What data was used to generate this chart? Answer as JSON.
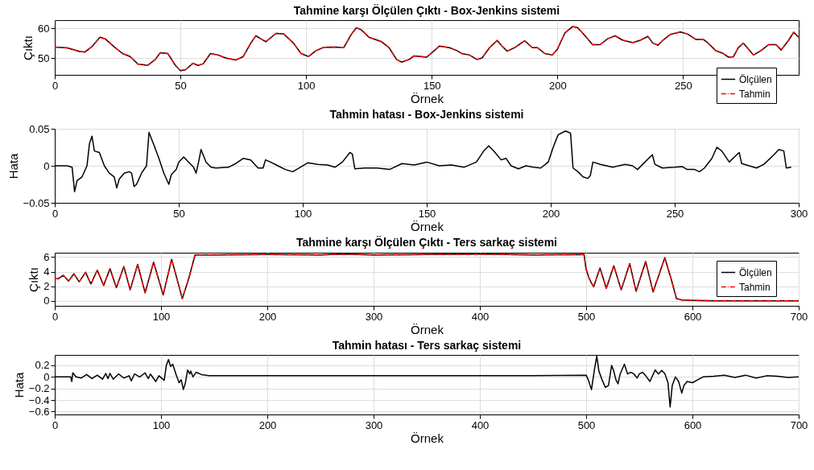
{
  "chart_data": [
    {
      "type": "line",
      "title": "Tahmine karşı Ölçülen Çıktı - Box-Jenkins sistemi",
      "xlabel": "Örnek",
      "ylabel": "Çıktı",
      "xlim": [
        0,
        296
      ],
      "xticks": [
        0,
        50,
        100,
        150,
        200,
        250
      ],
      "ylim": [
        44.3,
        62.8
      ],
      "yticks": [
        50,
        60
      ],
      "grid": true,
      "legend": "bottom right",
      "series": [
        {
          "name": "Ölçülen",
          "color": "#000000",
          "line_style": "solid",
          "x": [
            0,
            5,
            10,
            12,
            15,
            18,
            20,
            24,
            27,
            30,
            33,
            37,
            40,
            42,
            45,
            48,
            50,
            52,
            55,
            57,
            59,
            62,
            65,
            68,
            72,
            75,
            78,
            80,
            84,
            88,
            91,
            95,
            98,
            101,
            104,
            107,
            112,
            115,
            118,
            120,
            122,
            125,
            130,
            133,
            136,
            138,
            141,
            143,
            148,
            151,
            153,
            157,
            160,
            162,
            165,
            168,
            170,
            173,
            176,
            178,
            180,
            183,
            187,
            190,
            192,
            195,
            198,
            200,
            203,
            206,
            208,
            211,
            214,
            217,
            220,
            223,
            226,
            230,
            233,
            236,
            238,
            240,
            242,
            245,
            249,
            252,
            255,
            258,
            260,
            263,
            266,
            268,
            270,
            272,
            274,
            276,
            278,
            281,
            284,
            287,
            289,
            292,
            294,
            296
          ],
          "values": [
            53.7,
            53.4,
            52.2,
            52.0,
            54,
            57,
            56.5,
            53.5,
            51.5,
            50.5,
            48,
            47.5,
            49.5,
            51.8,
            51.5,
            47.5,
            45.7,
            46,
            48.2,
            47.5,
            48,
            51.5,
            51,
            50,
            49.3,
            50.5,
            55,
            57.5,
            55.5,
            58.3,
            58.2,
            55,
            51.5,
            50.5,
            52.5,
            53.6,
            53.7,
            53.5,
            58,
            60.2,
            59.5,
            57,
            55.5,
            53.5,
            49.5,
            48.6,
            49.5,
            50.7,
            50.3,
            52.5,
            54,
            53.5,
            52.5,
            51.5,
            51,
            49.5,
            50,
            53.5,
            55.9,
            54,
            52.3,
            53.5,
            55.8,
            53.5,
            53.5,
            51.5,
            51,
            53,
            58.5,
            60.6,
            60.3,
            57.5,
            54.5,
            54.5,
            56.5,
            57.5,
            56,
            55.2,
            56,
            57.3,
            55,
            54.3,
            56,
            58,
            58.8,
            58,
            56.3,
            56.3,
            55,
            52.5,
            51.5,
            50.3,
            50.4,
            53.5,
            55,
            53,
            51,
            52.5,
            54.5,
            54.5,
            52.7,
            56,
            58.7,
            57
          ]
        },
        {
          "name": "Tahmin",
          "color": "#ff0000",
          "line_style": "dashed",
          "x": [
            0,
            5,
            10,
            12,
            15,
            18,
            20,
            24,
            27,
            30,
            33,
            37,
            40,
            42,
            45,
            48,
            50,
            52,
            55,
            57,
            59,
            62,
            65,
            68,
            72,
            75,
            78,
            80,
            84,
            88,
            91,
            95,
            98,
            101,
            104,
            107,
            112,
            115,
            118,
            120,
            122,
            125,
            130,
            133,
            136,
            138,
            141,
            143,
            148,
            151,
            153,
            157,
            160,
            162,
            165,
            168,
            170,
            173,
            176,
            178,
            180,
            183,
            187,
            190,
            192,
            195,
            198,
            200,
            203,
            206,
            208,
            211,
            214,
            217,
            220,
            223,
            226,
            230,
            233,
            236,
            238,
            240,
            242,
            245,
            249,
            252,
            255,
            258,
            260,
            263,
            266,
            268,
            270,
            272,
            274,
            276,
            278,
            281,
            284,
            287,
            289,
            292,
            294,
            296
          ],
          "values": [
            53.7,
            53.4,
            52.2,
            52.0,
            54,
            57,
            56.5,
            53.5,
            51.5,
            50.5,
            48,
            47.5,
            49.5,
            51.8,
            51.5,
            47.5,
            45.7,
            46,
            48.2,
            47.5,
            48,
            51.5,
            51,
            50,
            49.3,
            50.5,
            55,
            57.5,
            55.5,
            58.3,
            58.2,
            55,
            51.5,
            50.5,
            52.5,
            53.6,
            53.7,
            53.5,
            58,
            60.2,
            59.5,
            57,
            55.5,
            53.5,
            49.5,
            48.6,
            49.5,
            50.7,
            50.3,
            52.5,
            54,
            53.5,
            52.5,
            51.5,
            51,
            49.5,
            50,
            53.5,
            55.9,
            54,
            52.3,
            53.5,
            55.8,
            53.5,
            53.5,
            51.5,
            51,
            53,
            58.5,
            60.6,
            60.3,
            57.5,
            54.5,
            54.5,
            56.5,
            57.5,
            56,
            55.2,
            56,
            57.3,
            55,
            54.3,
            56,
            58,
            58.8,
            58,
            56.3,
            56.3,
            55,
            52.5,
            51.5,
            50.3,
            50.4,
            53.5,
            55,
            53,
            51,
            52.5,
            54.5,
            54.5,
            52.7,
            56,
            58.7,
            57
          ]
        }
      ]
    },
    {
      "type": "line",
      "title": "Tahmin hatası - Box-Jenkins sistemi",
      "xlabel": "Örnek",
      "ylabel": "Hata",
      "xlim": [
        0,
        300
      ],
      "xticks": [
        0,
        50,
        100,
        150,
        200,
        250,
        300
      ],
      "ylim": [
        -0.05,
        0.05
      ],
      "yticks": [
        -0.05,
        {
          "value": 0,
          "label": "0"
        },
        0.05
      ],
      "grid": true,
      "series": [
        {
          "color": "#000000",
          "line_style": "solid",
          "x": [
            0,
            5,
            7,
            8,
            9,
            11,
            13,
            14,
            15,
            16,
            18,
            20,
            22,
            24,
            25,
            26,
            28,
            30,
            31,
            32,
            33,
            35,
            37,
            38,
            40,
            42,
            44,
            46,
            47,
            49,
            50,
            52,
            54,
            56,
            57,
            58,
            59,
            61,
            63,
            65,
            70,
            73,
            76,
            79,
            82,
            84,
            85,
            87,
            90,
            93,
            96,
            99,
            102,
            106,
            110,
            113,
            116,
            119,
            120,
            121,
            125,
            130,
            135,
            140,
            145,
            150,
            155,
            160,
            165,
            170,
            173,
            175,
            177,
            180,
            182,
            184,
            187,
            190,
            193,
            196,
            199,
            201,
            203,
            206,
            208,
            209,
            211,
            213,
            215,
            216,
            217,
            220,
            225,
            230,
            233,
            235,
            238,
            241,
            242,
            245,
            250,
            253,
            255,
            258,
            260,
            262,
            265,
            267,
            269,
            272,
            275,
            276,
            277,
            280,
            283,
            286,
            290,
            292,
            294,
            295,
            297
          ],
          "values": [
            0,
            0,
            -0.002,
            -0.035,
            -0.02,
            -0.015,
            0,
            0.03,
            0.04,
            0.02,
            0.018,
            0,
            -0.01,
            -0.015,
            -0.03,
            -0.018,
            -0.01,
            -0.008,
            -0.01,
            -0.028,
            -0.025,
            -0.01,
            0,
            0.045,
            0.028,
            0.01,
            -0.01,
            -0.025,
            -0.012,
            -0.005,
            0.005,
            0.012,
            0.005,
            -0.002,
            -0.01,
            0.005,
            0.022,
            0.005,
            -0.002,
            -0.003,
            -0.002,
            0.003,
            0.01,
            0.008,
            -0.003,
            -0.003,
            0.008,
            0.005,
            0,
            -0.005,
            -0.008,
            -0.002,
            0.004,
            0.002,
            0.001,
            -0.002,
            0.005,
            0.018,
            0.016,
            -0.004,
            -0.003,
            -0.003,
            -0.005,
            0.003,
            0.001,
            0.005,
            0,
            0.001,
            -0.002,
            0.005,
            0.02,
            0.027,
            0.02,
            0.008,
            0.01,
            0,
            -0.004,
            0,
            -0.002,
            -0.003,
            0.005,
            0.025,
            0.042,
            0.047,
            0.044,
            -0.003,
            -0.008,
            -0.015,
            -0.017,
            -0.013,
            0.005,
            0.002,
            -0.002,
            0.002,
            0,
            -0.005,
            0.005,
            0.015,
            0.002,
            -0.003,
            -0.002,
            -0.001,
            -0.005,
            -0.005,
            -0.008,
            -0.003,
            0.01,
            0.025,
            0.02,
            0.005,
            0.015,
            0.018,
            0.003,
            0,
            -0.003,
            0.002,
            0.015,
            0.022,
            0.02,
            -0.003,
            -0.002
          ]
        }
      ]
    },
    {
      "type": "line",
      "title": "Tahmine karşı Ölçülen Çıktı - Ters sarkaç sistemi",
      "xlabel": "Örnek",
      "ylabel": "Çıktı",
      "xlim": [
        0,
        700
      ],
      "xticks": [
        0,
        100,
        200,
        300,
        400,
        500,
        600,
        700
      ],
      "ylim": [
        -0.7,
        6.6
      ],
      "yticks": [
        0,
        2,
        4,
        6
      ],
      "grid": true,
      "legend": "top right",
      "series": [
        {
          "name": "Ölçülen",
          "color": "#000000",
          "line_style": "solid",
          "x": [
            0,
            3,
            8,
            13,
            18,
            23,
            29,
            34,
            40,
            46,
            52,
            58,
            65,
            71,
            78,
            85,
            93,
            102,
            110,
            120,
            126,
            132,
            150,
            200,
            250,
            270,
            300,
            350,
            400,
            450,
            498,
            500,
            503,
            507,
            513,
            519,
            526,
            533,
            541,
            547,
            556,
            563,
            574,
            580,
            585,
            590,
            600,
            620,
            650,
            700
          ],
          "values": [
            3.1,
            3.0,
            3.5,
            2.7,
            3.7,
            2.6,
            3.9,
            2.3,
            4.2,
            2.1,
            4.4,
            1.8,
            4.7,
            1.5,
            5.0,
            1.1,
            5.3,
            0.8,
            5.7,
            0.3,
            3.0,
            6.3,
            6.3,
            6.35,
            6.3,
            6.4,
            6.3,
            6.35,
            6.4,
            6.3,
            6.35,
            4.3,
            3.0,
            1.9,
            4.5,
            1.7,
            4.8,
            1.5,
            5.1,
            1.3,
            5.4,
            1.2,
            5.9,
            3.0,
            0.3,
            0.1,
            0.05,
            0,
            0,
            0
          ]
        },
        {
          "name": "Tahmin",
          "color": "#ff0000",
          "line_style": "dashed",
          "x": [
            0,
            3,
            8,
            13,
            18,
            23,
            29,
            34,
            40,
            46,
            52,
            58,
            65,
            71,
            78,
            85,
            93,
            102,
            110,
            120,
            126,
            132,
            150,
            200,
            250,
            270,
            300,
            350,
            400,
            450,
            498,
            500,
            503,
            507,
            513,
            519,
            526,
            533,
            541,
            547,
            556,
            563,
            574,
            580,
            585,
            590,
            600,
            620,
            650,
            700
          ],
          "values": [
            3.1,
            3.0,
            3.5,
            2.7,
            3.7,
            2.6,
            3.9,
            2.3,
            4.2,
            2.1,
            4.4,
            1.8,
            4.7,
            1.5,
            5.0,
            1.1,
            5.3,
            0.8,
            5.7,
            0.3,
            3.0,
            6.3,
            6.3,
            6.35,
            6.3,
            6.4,
            6.3,
            6.35,
            6.4,
            6.3,
            6.35,
            4.3,
            3.0,
            1.9,
            4.5,
            1.7,
            4.8,
            1.5,
            5.1,
            1.3,
            5.4,
            1.2,
            5.9,
            3.0,
            0.3,
            0.1,
            0.05,
            0,
            0,
            0
          ]
        }
      ]
    },
    {
      "type": "line",
      "title": "Tahmin hatası - Ters sarkaç sistemi",
      "xlabel": "Örnek",
      "ylabel": "Hata",
      "xlim": [
        0,
        700
      ],
      "xticks": [
        0,
        100,
        200,
        300,
        400,
        500,
        600,
        700
      ],
      "ylim": [
        -0.65,
        0.38
      ],
      "yticks": [
        -0.6,
        -0.4,
        -0.2,
        0,
        0.2
      ],
      "grid": true,
      "series": [
        {
          "color": "#000000",
          "line_style": "solid",
          "x": [
            0,
            15,
            16,
            17,
            20,
            25,
            30,
            35,
            40,
            45,
            48,
            50,
            52,
            55,
            60,
            65,
            70,
            72,
            75,
            80,
            85,
            88,
            90,
            95,
            98,
            103,
            105,
            107,
            109,
            111,
            114,
            117,
            119,
            121,
            123,
            125,
            127,
            128,
            130,
            133,
            138,
            145,
            175,
            200,
            250,
            300,
            350,
            400,
            450,
            500,
            502,
            505,
            508,
            510,
            512,
            515,
            518,
            521,
            524,
            526,
            528,
            530,
            532,
            536,
            539,
            542,
            545,
            548,
            550,
            553,
            556,
            560,
            565,
            568,
            571,
            574,
            577,
            579,
            581,
            584,
            587,
            590,
            592,
            595,
            600,
            605,
            610,
            620,
            630,
            640,
            650,
            660,
            670,
            680,
            690,
            700
          ],
          "values": [
            0,
            0,
            -0.08,
            0.07,
            0,
            -0.02,
            0.04,
            -0.03,
            0.03,
            -0.04,
            0.06,
            -0.03,
            0.06,
            -0.04,
            0.05,
            -0.02,
            0.02,
            -0.07,
            0.05,
            0,
            0.07,
            -0.03,
            0.05,
            -0.08,
            0.02,
            -0.06,
            0.2,
            0.3,
            0.18,
            0.22,
            0.05,
            -0.1,
            -0.05,
            -0.22,
            -0.1,
            0.12,
            0.05,
            0.1,
            0,
            0.08,
            0.04,
            0.02,
            0.02,
            0.02,
            0.02,
            0.02,
            0.02,
            0.02,
            0.02,
            0.03,
            -0.05,
            -0.22,
            0.15,
            0.36,
            0.1,
            -0.05,
            -0.18,
            -0.15,
            0.2,
            0.1,
            -0.05,
            -0.12,
            0.05,
            0.22,
            0.05,
            0.08,
            0.05,
            -0.02,
            0.05,
            0.08,
            0.02,
            -0.08,
            0.12,
            0.05,
            0.11,
            0.06,
            -0.1,
            -0.52,
            -0.15,
            0,
            -0.08,
            -0.28,
            -0.15,
            -0.08,
            -0.1,
            -0.05,
            0,
            0.01,
            0.03,
            -0.01,
            0.03,
            -0.02,
            0.02,
            0.01,
            -0.01,
            0
          ]
        }
      ]
    }
  ]
}
